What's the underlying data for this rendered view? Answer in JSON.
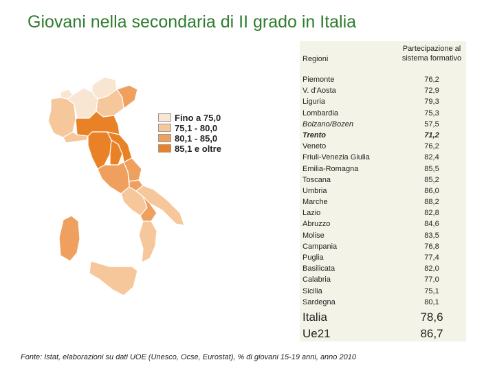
{
  "title": "Giovani nella secondaria di II grado in Italia",
  "legend": [
    {
      "label": "Fino a 75,0",
      "color": "#f8e6d2"
    },
    {
      "label": "75,1 -  80,0",
      "color": "#f6c79a"
    },
    {
      "label": "80,1 -  85,0",
      "color": "#f0a05e"
    },
    {
      "label": "85,1 e oltre",
      "color": "#e98226"
    }
  ],
  "table": {
    "header_region": "Regioni",
    "header_value": "Partecipazione al\nsistema formativo",
    "rows": [
      {
        "region": "Piemonte",
        "value": "76,2"
      },
      {
        "region": "V. d'Aosta",
        "value": "72,9"
      },
      {
        "region": "Liguria",
        "value": "79,3"
      },
      {
        "region": "Lombardia",
        "value": "75,3"
      },
      {
        "region": "Bolzano/Bozen",
        "value": "57,5",
        "style": "italic"
      },
      {
        "region": "Trento",
        "value": "71,2",
        "style": "bold-italic"
      },
      {
        "region": "Veneto",
        "value": "76,2"
      },
      {
        "region": "Friuli-Venezia Giulia",
        "value": "82,4"
      },
      {
        "region": "Emilia-Romagna",
        "value": "85,5"
      },
      {
        "region": "Toscana",
        "value": "85,2"
      },
      {
        "region": "Umbria",
        "value": "86,0"
      },
      {
        "region": "Marche",
        "value": "88,2"
      },
      {
        "region": "Lazio",
        "value": "82,8"
      },
      {
        "region": "Abruzzo",
        "value": "84,6"
      },
      {
        "region": "Molise",
        "value": "83,5"
      },
      {
        "region": "Campania",
        "value": "76,8"
      },
      {
        "region": "Puglia",
        "value": "77,4"
      },
      {
        "region": "Basilicata",
        "value": "82,0"
      },
      {
        "region": "Calabria",
        "value": "77,0"
      },
      {
        "region": "Sicilia",
        "value": "75,1"
      },
      {
        "region": "Sardegna",
        "value": "80,1"
      }
    ],
    "totals": [
      {
        "region": "Italia",
        "value": "78,6"
      },
      {
        "region": "Ue21",
        "value": "86,7"
      }
    ]
  },
  "source": "Fonte: Istat, elaborazioni su dati UOE (Unesco, Ocse, Eurostat), % di giovani 15-19 anni, anno 2010"
}
